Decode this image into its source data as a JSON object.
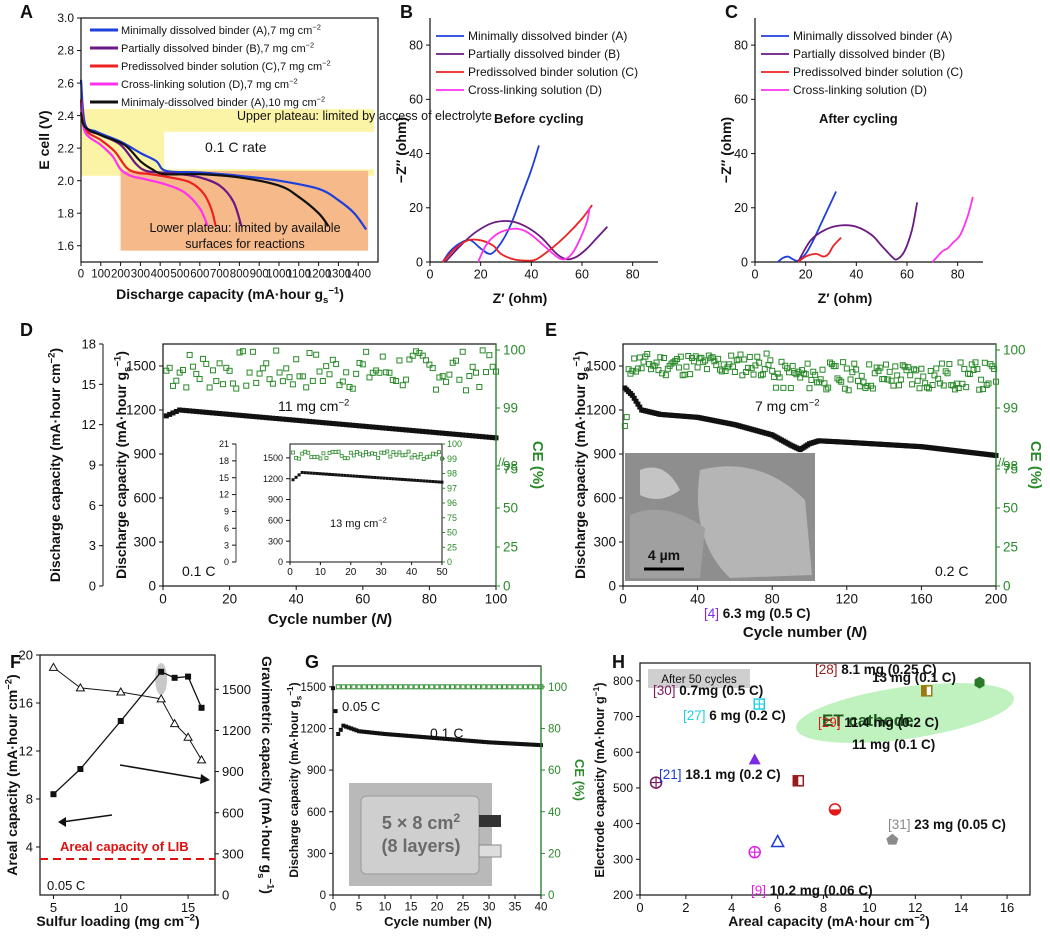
{
  "colors": {
    "blue": "#1f3fdc",
    "purple": "#6a1a82",
    "red": "#ee2222",
    "magenta": "#ff33ee",
    "black": "#111111",
    "green": "#2a8a2a",
    "yellow_band": "#fbf4a6",
    "orange_band": "#f6b98a",
    "ellipse": "#bff2bf",
    "photo_bg": "#8e8e8e",
    "grey_box": "#cfcfcf"
  },
  "chart_data": [
    {
      "id": "A",
      "panel_label": "A",
      "type": "line",
      "xlabel": "Discharge capacity (mA·hour g",
      "xlabel_sub": "s",
      "xlabel_sup": "−1",
      "xlabel_close": ")",
      "ylabel": "E cell (V)",
      "xlim": [
        0,
        1500
      ],
      "ylim": [
        1.5,
        3.0
      ],
      "xticks": [
        "0",
        "100",
        "200",
        "300",
        "400",
        "500",
        "600",
        "700",
        "800",
        "900",
        "1000",
        "1100",
        "1200",
        "1300",
        "1400"
      ],
      "yticks": [
        "1.6",
        "1.8",
        "2.0",
        "2.2",
        "2.4",
        "2.6",
        "2.8",
        "3.0"
      ],
      "annotations": [
        "Upper plateau: limited by access of electrolyte",
        "0.1 C rate",
        "Lower plateau: limited by available",
        "surfaces for reactions"
      ],
      "series": [
        {
          "name": "Minimally dissolved binder (A),7 mg cm",
          "name_sup": "−2",
          "color": "blue",
          "x": [
            0,
            20,
            80,
            200,
            300,
            380,
            430,
            600,
            800,
            1000,
            1200,
            1300,
            1380,
            1440
          ],
          "y": [
            2.62,
            2.35,
            2.3,
            2.24,
            2.17,
            2.12,
            2.06,
            2.05,
            2.03,
            2.0,
            1.95,
            1.88,
            1.8,
            1.7
          ]
        },
        {
          "name": "Partially dissolved binder (B),7 mg cm",
          "name_sup": "−2",
          "color": "purple",
          "x": [
            0,
            20,
            100,
            200,
            280,
            330,
            400,
            500,
            600,
            700,
            770,
            810
          ],
          "y": [
            2.5,
            2.33,
            2.28,
            2.22,
            2.1,
            2.06,
            2.05,
            2.04,
            2.02,
            1.97,
            1.87,
            1.72
          ]
        },
        {
          "name": "Predissolved binder solution (C),7 mg cm",
          "name_sup": "−2",
          "color": "red",
          "x": [
            0,
            20,
            100,
            170,
            230,
            280,
            350,
            450,
            550,
            620,
            660,
            680
          ],
          "y": [
            2.5,
            2.32,
            2.25,
            2.18,
            2.08,
            2.05,
            2.04,
            2.02,
            1.99,
            1.92,
            1.82,
            1.72
          ]
        },
        {
          "name": "Cross-linking solution (D),7 mg cm",
          "name_sup": "−2",
          "color": "magenta",
          "x": [
            0,
            20,
            100,
            160,
            200,
            250,
            320,
            420,
            520,
            600,
            640
          ],
          "y": [
            2.48,
            2.3,
            2.22,
            2.15,
            2.07,
            2.03,
            2.01,
            1.98,
            1.93,
            1.83,
            1.72
          ]
        },
        {
          "name": "Minimaly-dissolved binder (A),10 mg cm",
          "name_sup": "−2",
          "color": "black",
          "x": [
            0,
            20,
            100,
            220,
            300,
            360,
            420,
            600,
            800,
            1000,
            1100,
            1200,
            1250
          ],
          "y": [
            2.42,
            2.33,
            2.28,
            2.22,
            2.12,
            2.07,
            2.04,
            2.04,
            2.02,
            1.97,
            1.9,
            1.8,
            1.72
          ]
        }
      ]
    },
    {
      "id": "B",
      "panel_label": "B",
      "type": "line",
      "xlabel": "Z′ (ohm)",
      "ylabel": "−Z″ (ohm)",
      "title": "Before cycling",
      "xlim": [
        0,
        90
      ],
      "ylim": [
        0,
        90
      ],
      "xticks": [
        "0",
        "20",
        "40",
        "60",
        "80"
      ],
      "yticks": [
        "0",
        "20",
        "40",
        "60",
        "80"
      ],
      "series": [
        {
          "name": "Minimally dissolved binder (A)",
          "color": "blue",
          "x": [
            5,
            8,
            12,
            16,
            20,
            24,
            28,
            32,
            36,
            40,
            43
          ],
          "y": [
            0,
            4,
            7,
            8,
            5,
            3,
            7,
            14,
            24,
            34,
            43
          ]
        },
        {
          "name": "Partially dissolved binder (B)",
          "color": "purple",
          "x": [
            6,
            12,
            18,
            25,
            32,
            38,
            44,
            50,
            54,
            58,
            62,
            66,
            70
          ],
          "y": [
            0,
            6,
            11,
            14.5,
            15,
            13,
            9,
            3,
            1,
            2,
            5,
            9,
            13
          ]
        },
        {
          "name": "Predissolved binder solution (C)",
          "color": "red",
          "x": [
            5,
            10,
            15,
            20,
            25,
            28,
            33,
            38,
            42,
            48,
            54,
            60,
            64
          ],
          "y": [
            0,
            5,
            8,
            8,
            6,
            3,
            1,
            0.5,
            1,
            5,
            10,
            16,
            21
          ]
        },
        {
          "name": "Cross-linking solution (D)",
          "color": "magenta",
          "x": [
            19,
            22,
            26,
            31,
            36,
            40,
            45,
            50,
            53,
            56,
            59,
            62,
            63
          ],
          "y": [
            0,
            6,
            10,
            12,
            12,
            10,
            6,
            2,
            1,
            3,
            8,
            15,
            20
          ]
        }
      ]
    },
    {
      "id": "C",
      "panel_label": "C",
      "type": "line",
      "xlabel": "Z′ (ohm)",
      "ylabel": "−Z″ (ohm)",
      "title": "After cycling",
      "xlim": [
        0,
        90
      ],
      "ylim": [
        0,
        90
      ],
      "xticks": [
        "0",
        "20",
        "40",
        "60",
        "80"
      ],
      "yticks": [
        "0",
        "20",
        "40",
        "60",
        "80"
      ],
      "series": [
        {
          "name": "Minimally dissolved binder (A)",
          "color": "blue",
          "x": [
            9,
            11,
            13,
            15,
            17,
            20,
            23,
            26,
            29,
            32
          ],
          "y": [
            0,
            1.5,
            2,
            1,
            0.5,
            3,
            8,
            14,
            20,
            26
          ]
        },
        {
          "name": "Partially dissolved binder (B)",
          "color": "purple",
          "x": [
            17,
            22,
            28,
            34,
            40,
            46,
            50,
            54,
            56,
            59,
            62,
            64
          ],
          "y": [
            0,
            8,
            12,
            13.5,
            13,
            10,
            6,
            2,
            1,
            4,
            12,
            22
          ]
        },
        {
          "name": "Predissolved binder solution (C)",
          "color": "red",
          "x": [
            17,
            20,
            24,
            27,
            29,
            31,
            34
          ],
          "y": [
            0,
            2,
            3,
            2,
            3,
            6,
            9
          ]
        },
        {
          "name": "Cross-linking solution (D)",
          "color": "magenta",
          "x": [
            70,
            72,
            74,
            76,
            78,
            81,
            84,
            86
          ],
          "y": [
            0,
            2,
            4,
            5,
            7,
            10,
            17,
            24
          ]
        }
      ]
    },
    {
      "id": "D",
      "panel_label": "D",
      "type": "scatter",
      "xlabel": "Cycle number (",
      "xlabel_italic": "N",
      "xlabel_close": ")",
      "ylabel": "Discharge capacity (mA·hour g",
      "ylabel_sub": "s",
      "ylabel_sup": "−1",
      "ylabel_close": ")",
      "ylabel_outer": "Discharge capacity (mA·hour cm",
      "ylabel_outer_sup": "−2",
      "ylabel_outer_close": ")",
      "ylabel_right": "CE (%)",
      "xlim": [
        0,
        100
      ],
      "ylim": [
        0,
        1650
      ],
      "xticks": [
        "0",
        "20",
        "40",
        "60",
        "80",
        "100"
      ],
      "yticks": [
        "0",
        "300",
        "600",
        "900",
        "1200",
        "1500"
      ],
      "outer_yticks": [
        "0",
        "3",
        "6",
        "9",
        "12",
        "15",
        "18"
      ],
      "right_yticks_upper": [
        "98",
        "99",
        "100"
      ],
      "right_yticks_lower": [
        "0",
        "25",
        "50",
        "75"
      ],
      "annotation": "11 mg cm",
      "annotation_sup": "−2",
      "rate": "0.1 C",
      "capacity": {
        "start": 1150,
        "peak": 1200,
        "peak_at": 5,
        "end": 1010
      },
      "ce": {
        "mean": 99.65,
        "spread": 0.35
      },
      "inset": {
        "xlim": [
          0,
          50
        ],
        "ylim": [
          0,
          1700
        ],
        "xticks": [
          "0",
          "10",
          "20",
          "30",
          "40",
          "50"
        ],
        "yticks": [
          "0",
          "300",
          "600",
          "900",
          "1200",
          "1500"
        ],
        "outer_yticks": [
          "0",
          "3",
          "6",
          "9",
          "12",
          "15",
          "18",
          "21"
        ],
        "right_yticks": [
          "0",
          "25",
          "50",
          "75",
          "96",
          "97",
          "98",
          "99",
          "100"
        ],
        "annotation": "13 mg cm",
        "annotation_sup": "−2",
        "capacity_start": 1150,
        "capacity_peak": 1290,
        "capacity_end": 1150
      }
    },
    {
      "id": "E",
      "panel_label": "E",
      "type": "scatter",
      "xlabel": "Cycle number (",
      "xlabel_italic": "N",
      "xlabel_close": ")",
      "ylabel": "Discharge capacity (mA·hour g",
      "ylabel_sub": "s",
      "ylabel_sup": "−1",
      "ylabel_close": ")",
      "ylabel_right": "CE (%)",
      "xlim": [
        0,
        200
      ],
      "ylim": [
        0,
        1650
      ],
      "xticks": [
        "0",
        "40",
        "80",
        "120",
        "160",
        "200"
      ],
      "yticks": [
        "0",
        "300",
        "600",
        "900",
        "1200",
        "1500"
      ],
      "right_yticks_upper": [
        "98",
        "99",
        "100"
      ],
      "right_yticks_lower": [
        "0",
        "25",
        "50",
        "75"
      ],
      "annotation": "7 mg cm",
      "annotation_sup": "−2",
      "rate": "0.2 C",
      "scale_bar": "4 µm",
      "capacity_points": [
        [
          1,
          1350
        ],
        [
          5,
          1300
        ],
        [
          10,
          1200
        ],
        [
          20,
          1170
        ],
        [
          40,
          1150
        ],
        [
          60,
          1100
        ],
        [
          80,
          1030
        ],
        [
          90,
          960
        ],
        [
          95,
          930
        ],
        [
          100,
          970
        ],
        [
          105,
          990
        ],
        [
          120,
          980
        ],
        [
          160,
          950
        ],
        [
          200,
          890
        ]
      ]
    },
    {
      "id": "F",
      "panel_label": "F",
      "type": "line",
      "xlabel": "Sulfur loading (mg cm",
      "xlabel_sup": "−2",
      "xlabel_close": ")",
      "ylabel": "Areal capacity (mA·hour cm",
      "ylabel_sup": "−2",
      "ylabel_close": ")",
      "ylabel_right": "Gravimetric capacity (mA·hour g",
      "ylabel_right_sub": "s",
      "ylabel_right_sup": "−1",
      "ylabel_right_close": ")",
      "xlim": [
        4,
        17
      ],
      "ylim": [
        0,
        20
      ],
      "y2lim": [
        0,
        1750
      ],
      "xticks": [
        "5",
        "10",
        "15"
      ],
      "yticks": [
        "4",
        "8",
        "12",
        "16",
        "20"
      ],
      "y2ticks": [
        "0",
        "300",
        "600",
        "900",
        "1200",
        "1500"
      ],
      "lib_label": "Areal capacity of LIB",
      "lib_value": 3.0,
      "rate": "0.05 C",
      "series": [
        {
          "name": "Areal capacity",
          "marker": "square",
          "color": "black",
          "axis": "left",
          "x": [
            5,
            7,
            10,
            13,
            14,
            15,
            16
          ],
          "y": [
            8.4,
            10.5,
            14.5,
            18.6,
            18.1,
            18.2,
            15.6
          ]
        },
        {
          "name": "Gravimetric capacity",
          "marker": "triangle",
          "color": "black",
          "axis": "right",
          "x": [
            5,
            7,
            10,
            13,
            14,
            15,
            16
          ],
          "y": [
            1660,
            1510,
            1480,
            1430,
            1250,
            1150,
            985
          ]
        }
      ]
    },
    {
      "id": "G",
      "panel_label": "G",
      "type": "scatter",
      "xlabel": "Cycle number (N)",
      "ylabel": "Discharge capacity (mA·hour g",
      "ylabel_sub": "s",
      "ylabel_sup": "−1",
      "ylabel_close": ")",
      "ylabel_right": "CE (%)",
      "xlim": [
        0,
        40
      ],
      "ylim": [
        0,
        1650
      ],
      "y2lim": [
        0,
        110
      ],
      "xticks": [
        "0",
        "5",
        "10",
        "15",
        "20",
        "25",
        "30",
        "35",
        "40"
      ],
      "yticks": [
        "0",
        "300",
        "600",
        "900",
        "1200",
        "1500"
      ],
      "y2ticks": [
        "0",
        "20",
        "40",
        "60",
        "80",
        "100"
      ],
      "label_first": "0.05 C",
      "label_rate": "0.1 C",
      "photo_line1": "5 × 8 cm",
      "photo_sup": "2",
      "photo_line2": "(8 layers)",
      "capacity_points": [
        [
          0,
          1490
        ],
        [
          1,
          1160
        ],
        [
          2,
          1220
        ],
        [
          5,
          1180
        ],
        [
          10,
          1160
        ],
        [
          20,
          1130
        ],
        [
          30,
          1100
        ],
        [
          40,
          1080
        ]
      ],
      "ce": 100
    },
    {
      "id": "H",
      "panel_label": "H",
      "type": "scatter",
      "xlabel": "Areal capacity (mA·hour cm",
      "xlabel_sup": "−2",
      "xlabel_close": ")",
      "ylabel": "Electrode capacity (mA·hour g",
      "ylabel_sup": "−1",
      "ylabel_close": ")",
      "xlim": [
        0,
        17
      ],
      "ylim": [
        200,
        850
      ],
      "xticks": [
        "0",
        "2",
        "4",
        "6",
        "8",
        "10",
        "12",
        "14",
        "16"
      ],
      "yticks": [
        "200",
        "300",
        "400",
        "500",
        "600",
        "700",
        "800"
      ],
      "box_label": "After 50 cycles",
      "et_label": "ET cathode",
      "points": [
        {
          "ref": "",
          "label": "13 mg (0.1 C)",
          "x": 14.8,
          "y": 795,
          "color": "#2a7a2a",
          "marker": "hexagon"
        },
        {
          "ref": "",
          "label": "11 mg (0.1 C)",
          "x": 12.5,
          "y": 772,
          "color": "#9a7a10",
          "marker": "halfsquare"
        },
        {
          "ref": "[27]",
          "label": "6 mg (0.2 C)",
          "x": 5.2,
          "y": 735,
          "color": "#22cfe0",
          "marker": "cross"
        },
        {
          "ref": "[4]",
          "label": "6.3 mg (0.5 C)",
          "x": 5.0,
          "y": 580,
          "color": "#7b2be0",
          "marker": "triangle"
        },
        {
          "ref": "[28]",
          "label": "8.1 mg (0.25 C)",
          "x": 6.9,
          "y": 520,
          "color": "#9a1a1a",
          "marker": "halfsquare"
        },
        {
          "ref": "[30]",
          "label": "0.7mg (0.5 C)",
          "x": 0.7,
          "y": 515,
          "color": "#7a1a5a",
          "marker": "circlecross"
        },
        {
          "ref": "[29]",
          "label": "11.4 mg (0.2 C)",
          "x": 8.5,
          "y": 440,
          "color": "#e01a1a",
          "marker": "halfcircle"
        },
        {
          "ref": "[21]",
          "label": "18.1 mg (0.2 C)",
          "x": 6.0,
          "y": 350,
          "color": "#1a3adc",
          "marker": "opentriangle"
        },
        {
          "ref": "[31]",
          "label": "23 mg (0.05 C)",
          "x": 11.0,
          "y": 355,
          "color": "#8a8a8a",
          "marker": "pentagon"
        },
        {
          "ref": "[9]",
          "label": "10.2 mg (0.06 C)",
          "x": 5.0,
          "y": 320,
          "color": "#e020e0",
          "marker": "circlecross"
        }
      ]
    }
  ]
}
